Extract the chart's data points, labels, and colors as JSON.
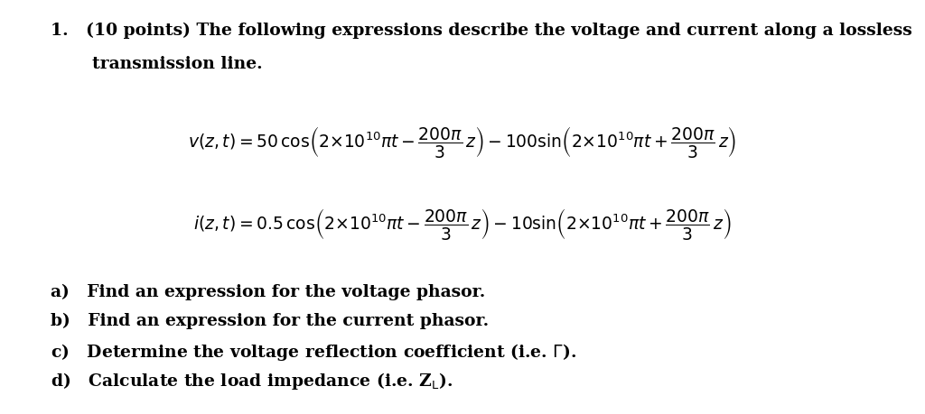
{
  "background_color": "#ffffff",
  "text_color": "#000000",
  "fontsize_header": 13.5,
  "fontsize_eq": 13.5,
  "fontsize_items": 13.5,
  "fig_width": 10.24,
  "fig_height": 4.59,
  "dpi": 100
}
